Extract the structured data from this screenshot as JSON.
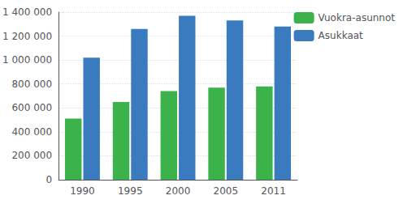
{
  "chart_data": {
    "type": "bar",
    "categories": [
      "1990",
      "1995",
      "2000",
      "2005",
      "2011"
    ],
    "series": [
      {
        "name": "Vuokra-asunnot",
        "color": "#3cb34a",
        "values": [
          510000,
          650000,
          740000,
          770000,
          780000
        ]
      },
      {
        "name": "Asukkaat",
        "color": "#3a7bbf",
        "values": [
          1020000,
          1260000,
          1370000,
          1330000,
          1280000
        ]
      }
    ],
    "ylim": [
      0,
      1400000
    ],
    "yticks": [
      0,
      {
        "value": 200000,
        "label": "200 000"
      },
      {
        "value": 400000,
        "label": "400 000"
      },
      {
        "value": 600000,
        "label": "600 000"
      },
      {
        "value": 800000,
        "label": "800 000"
      },
      {
        "value": 1000000,
        "label": "1 000 000"
      },
      {
        "value": 1200000,
        "label": "1 200 000"
      },
      {
        "value": 1400000,
        "label": "1 400 000"
      }
    ],
    "grid": true,
    "legend": "right"
  }
}
